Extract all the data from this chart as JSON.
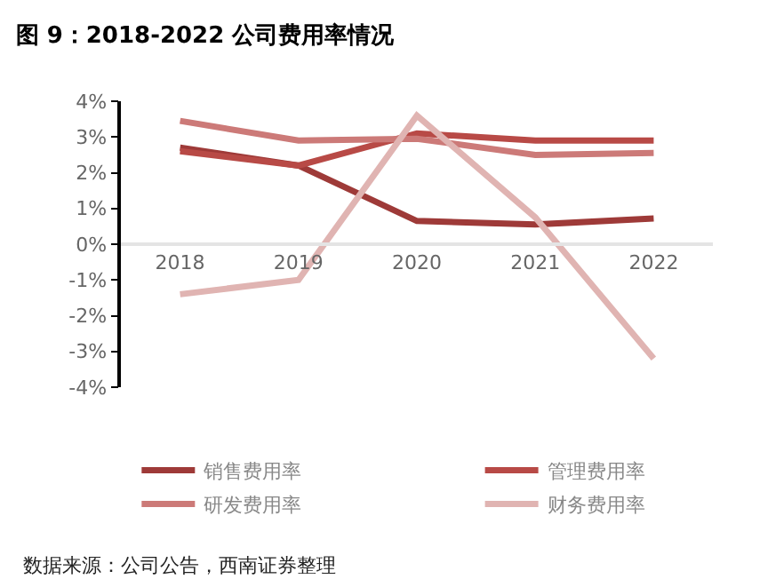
{
  "chart_data": {
    "type": "line",
    "title": "图 9：2018-2022 公司费用率情况",
    "categories": [
      "2018",
      "2019",
      "2020",
      "2021",
      "2022"
    ],
    "series": [
      {
        "name": "销售费用率",
        "color": "#9e3a38",
        "values": [
          2.7,
          2.2,
          0.65,
          0.55,
          0.72
        ]
      },
      {
        "name": "管理费用率",
        "color": "#b84a46",
        "values": [
          2.6,
          2.2,
          3.1,
          2.9,
          2.9
        ]
      },
      {
        "name": "研发费用率",
        "color": "#cc7a78",
        "values": [
          3.45,
          2.9,
          2.95,
          2.5,
          2.55
        ]
      },
      {
        "name": "财务费用率",
        "color": "#e0b4b2",
        "values": [
          -1.4,
          -1.0,
          3.6,
          0.75,
          -3.2
        ]
      }
    ],
    "ylim": [
      -4,
      4
    ],
    "yticks": [
      {
        "value": -4,
        "label": "-4%"
      },
      {
        "value": -3,
        "label": "-3%"
      },
      {
        "value": -2,
        "label": "-2%"
      },
      {
        "value": -1,
        "label": "-1%"
      },
      {
        "value": 0,
        "label": "0%"
      },
      {
        "value": 1,
        "label": "1%"
      },
      {
        "value": 2,
        "label": "2%"
      },
      {
        "value": 3,
        "label": "3%"
      },
      {
        "value": 4,
        "label": "4%"
      }
    ],
    "legend": "bottom",
    "marker": "none",
    "line_style": "solid",
    "annotations": [
      "数据来源：公司公告，西南证券整理"
    ]
  }
}
